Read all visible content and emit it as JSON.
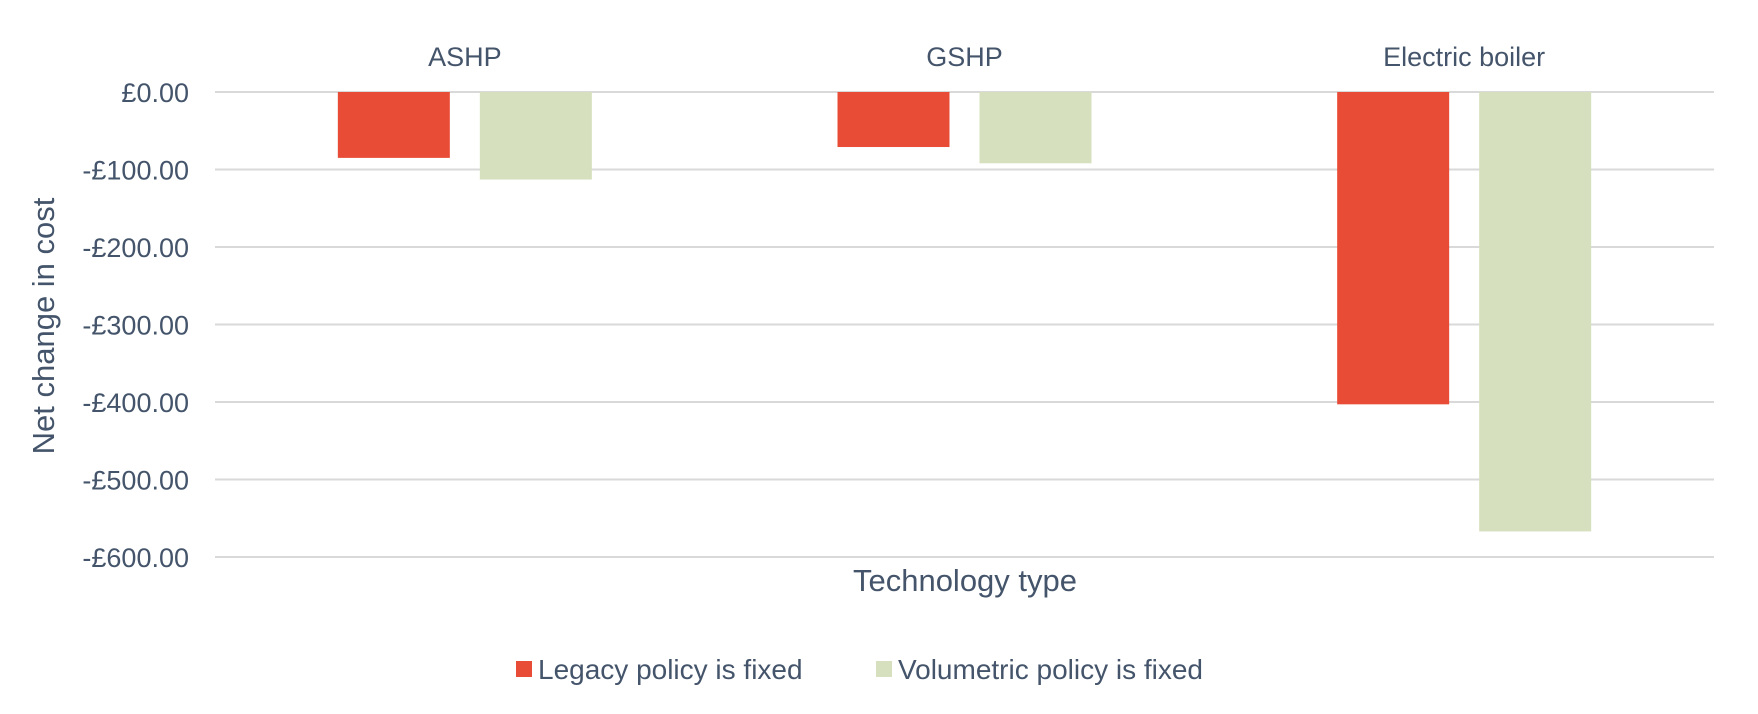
{
  "chart_data": {
    "type": "bar",
    "categories": [
      "ASHP",
      "GSHP",
      "Electric boiler"
    ],
    "series": [
      {
        "name": "Legacy policy is fixed",
        "color": "#e84c36",
        "values": [
          -85,
          -71,
          -403
        ]
      },
      {
        "name": "Volumetric policy is fixed",
        "color": "#d6e0be",
        "values": [
          -113,
          -92,
          -567
        ]
      }
    ],
    "xlabel": "Technology type",
    "ylabel": "Net change in cost",
    "ylim": [
      -600,
      0
    ],
    "yticks": [
      0,
      -100,
      -200,
      -300,
      -400,
      -500,
      -600
    ],
    "ytick_labels": [
      "£0.00",
      "-£100.00",
      "-£200.00",
      "-£300.00",
      "-£400.00",
      "-£500.00",
      "-£600.00"
    ],
    "category_labels_position": "top",
    "grid": true,
    "legend_position": "bottom"
  }
}
